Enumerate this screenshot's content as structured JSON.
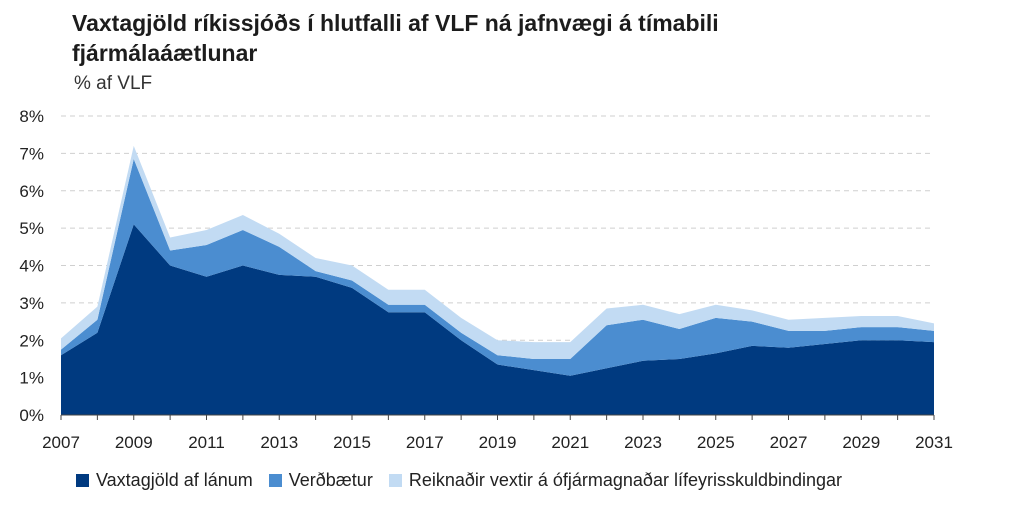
{
  "chart_data": {
    "type": "area",
    "title": "Vaxtagjöld ríkissjóðs í hlutfalli af VLF ná jafnvægi á tímabili fjármálaáætlunar",
    "subtitle": "% af VLF",
    "stacked": true,
    "x": [
      2007,
      2008,
      2009,
      2010,
      2011,
      2012,
      2013,
      2014,
      2015,
      2016,
      2017,
      2018,
      2019,
      2020,
      2021,
      2022,
      2023,
      2024,
      2025,
      2026,
      2027,
      2028,
      2029,
      2030,
      2031
    ],
    "x_tick_labels": [
      "2007",
      "2009",
      "2011",
      "2013",
      "2015",
      "2017",
      "2019",
      "2021",
      "2023",
      "2025",
      "2027",
      "2029",
      "2031"
    ],
    "y_tick_labels": [
      "0%",
      "1%",
      "2%",
      "3%",
      "4%",
      "5%",
      "6%",
      "7%",
      "8%"
    ],
    "ylim": [
      0,
      8
    ],
    "grid": true,
    "legend_position": "bottom",
    "series": [
      {
        "name": "Vaxtagjöld af lánum",
        "color": "#003a80",
        "values": [
          1.6,
          2.2,
          5.1,
          4.0,
          3.7,
          4.0,
          3.75,
          3.7,
          3.4,
          2.75,
          2.75,
          2.0,
          1.35,
          1.2,
          1.05,
          1.25,
          1.45,
          1.5,
          1.65,
          1.85,
          1.8,
          1.9,
          2.0,
          2.0,
          1.95
        ]
      },
      {
        "name": "Verðbætur",
        "color": "#4b8dd0",
        "values": [
          0.15,
          0.35,
          1.75,
          0.4,
          0.85,
          0.95,
          0.75,
          0.15,
          0.2,
          0.2,
          0.2,
          0.2,
          0.25,
          0.3,
          0.45,
          1.15,
          1.1,
          0.8,
          0.95,
          0.65,
          0.45,
          0.35,
          0.35,
          0.35,
          0.3
        ]
      },
      {
        "name": "Reiknaðir vextir á ófjármagnaðar lífeyrisskuldbindingar",
        "color": "#c2dbf3",
        "values": [
          0.3,
          0.35,
          0.35,
          0.35,
          0.4,
          0.4,
          0.35,
          0.35,
          0.4,
          0.4,
          0.4,
          0.4,
          0.4,
          0.45,
          0.45,
          0.45,
          0.4,
          0.4,
          0.35,
          0.3,
          0.3,
          0.35,
          0.3,
          0.3,
          0.2
        ]
      }
    ]
  }
}
